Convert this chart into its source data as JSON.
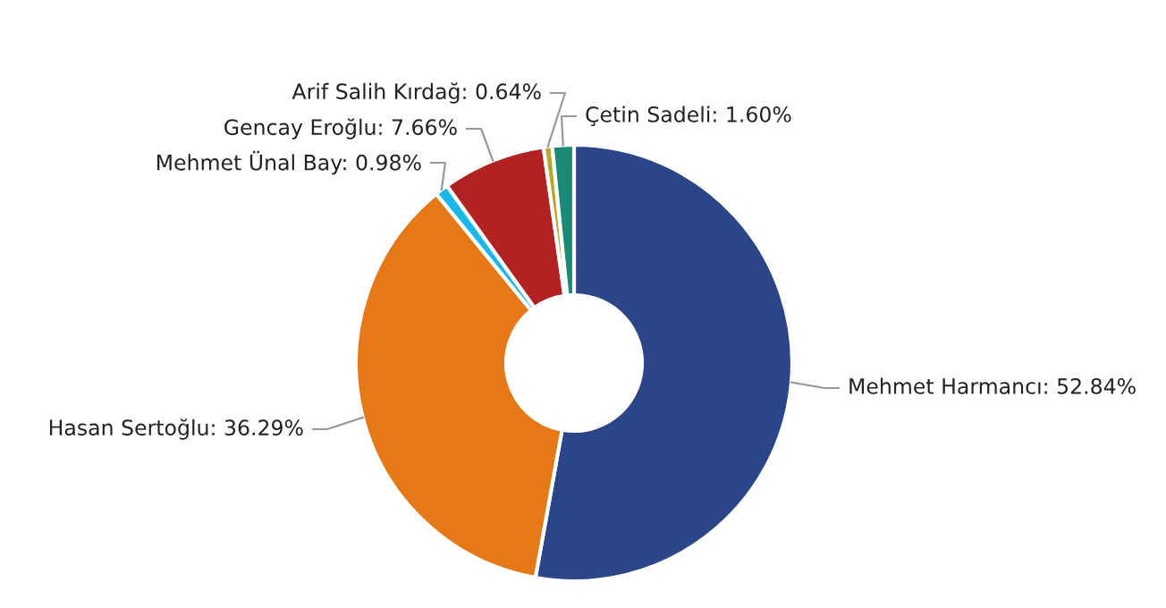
{
  "chart_data": {
    "type": "donut",
    "categories": [
      "Mehmet Harmancı",
      "Hasan Sertoğlu",
      "Mehmet Ünal Bay",
      "Gencay Eroğlu",
      "Arif Salih Kırdağ",
      "Çetin Sadeli"
    ],
    "values": [
      52.84,
      36.29,
      0.98,
      7.66,
      0.64,
      1.6
    ],
    "colors": [
      "#2b4589",
      "#e77817",
      "#1ab7ea",
      "#b22222",
      "#b5a82a",
      "#1a8a78"
    ],
    "value_labels": [
      "52.84%",
      "36.29%",
      "0.98%",
      "7.66%",
      "0.64%",
      "1.60%"
    ]
  }
}
